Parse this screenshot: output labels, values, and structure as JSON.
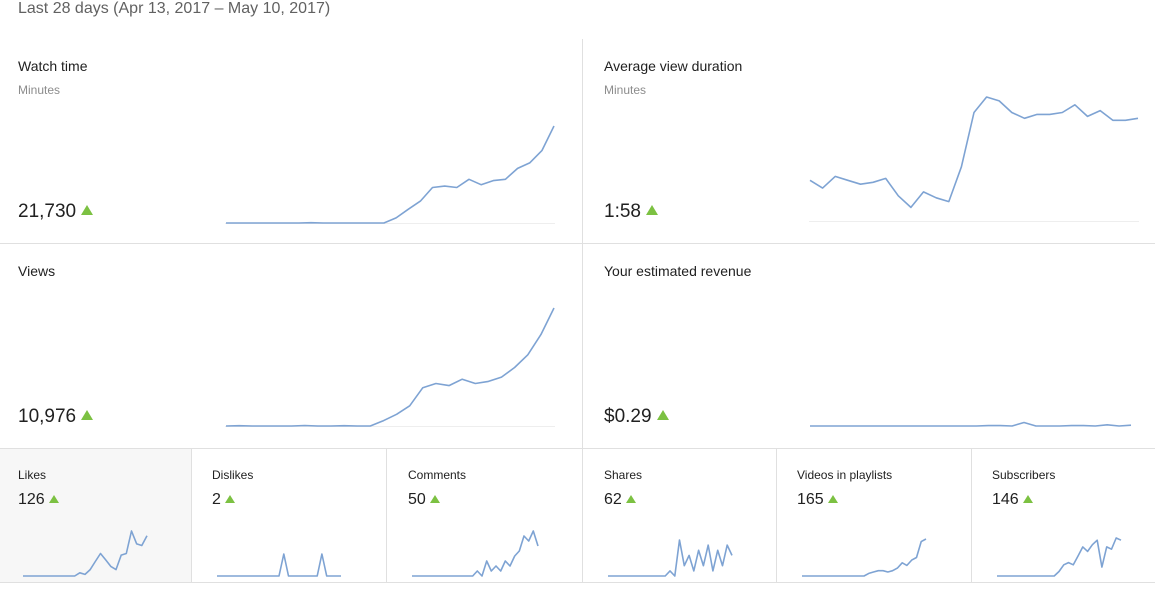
{
  "header": {
    "date_range": "Last 28 days (Apr 13, 2017 – May 10, 2017)"
  },
  "colors": {
    "line": "#7ea3d3",
    "up_arrow": "#7cc142",
    "divider": "#e0e0e0"
  },
  "metrics": {
    "watch_time": {
      "title": "Watch time",
      "subtitle": "Minutes",
      "value": "21,730",
      "trend": "up",
      "series": [
        0,
        0,
        0,
        0,
        0,
        0,
        0,
        0.2,
        0,
        0,
        0,
        0,
        0,
        0,
        3.7,
        10,
        16,
        26,
        27,
        26,
        32,
        28,
        31,
        32,
        40,
        44,
        53,
        71
      ]
    },
    "avg_view_duration": {
      "title": "Average view duration",
      "subtitle": "Minutes",
      "value": "1:58",
      "trend": "up",
      "series": [
        21,
        17,
        23,
        21,
        19,
        20,
        22,
        13,
        7,
        15,
        12,
        10,
        28,
        56,
        64,
        62,
        56,
        53,
        55,
        55,
        56,
        60,
        54,
        57,
        52,
        52,
        53
      ]
    },
    "views": {
      "title": "Views",
      "subtitle": "",
      "value": "10,976",
      "trend": "up",
      "series": [
        0,
        0.3,
        0,
        0,
        0,
        0,
        0.5,
        0,
        0,
        0.3,
        0,
        0,
        5,
        11,
        19,
        36,
        40,
        38,
        44,
        40,
        42,
        46,
        55,
        67,
        86,
        111
      ]
    },
    "revenue": {
      "title": "Your estimated revenue",
      "subtitle": "",
      "value": "$0.29",
      "trend": "up",
      "series": [
        0,
        0,
        0,
        0,
        0,
        0,
        0,
        0,
        0,
        0,
        0,
        0,
        0,
        0,
        0,
        0.1,
        0.1,
        0,
        0.9,
        0,
        0,
        0,
        0.1,
        0.1,
        0,
        0.3,
        0,
        0.2
      ]
    },
    "likes": {
      "title": "Likes",
      "value": "126",
      "trend": "up",
      "series": [
        0,
        0,
        0,
        0,
        0,
        0,
        0,
        0,
        0,
        0,
        0,
        2,
        1,
        4,
        9,
        14,
        10,
        6,
        4,
        13,
        14,
        28,
        20,
        19,
        25
      ]
    },
    "dislikes": {
      "title": "Dislikes",
      "value": "2",
      "trend": "up",
      "series": [
        0,
        0,
        0,
        0,
        0,
        0,
        0,
        0,
        0,
        0,
        0,
        0,
        0,
        0,
        1,
        0,
        0,
        0,
        0,
        0,
        0,
        0,
        1,
        0,
        0,
        0,
        0
      ]
    },
    "comments": {
      "title": "Comments",
      "value": "50",
      "trend": "up",
      "series": [
        0,
        0,
        0,
        0,
        0,
        0,
        0,
        0,
        0,
        0,
        0,
        0,
        0,
        0,
        1,
        0,
        3,
        1,
        2,
        1,
        3,
        2,
        4,
        5,
        8,
        7,
        9,
        6
      ]
    },
    "shares": {
      "title": "Shares",
      "value": "62",
      "trend": "up",
      "series": [
        0,
        0,
        0,
        0,
        0,
        0,
        0,
        0,
        0,
        0,
        0,
        0,
        0,
        1,
        0,
        7,
        2,
        4,
        1,
        5,
        2,
        6,
        1,
        5,
        2,
        6,
        4
      ]
    },
    "videos_in_playlists": {
      "title": "Videos in playlists",
      "value": "165",
      "trend": "up",
      "series": [
        0,
        0,
        0,
        0,
        0,
        0,
        0,
        0,
        0,
        0,
        0,
        0,
        0,
        0,
        1,
        1.5,
        2,
        2,
        1.5,
        2,
        3,
        5,
        4,
        6,
        7,
        13,
        14
      ]
    },
    "subscribers": {
      "title": "Subscribers",
      "value": "146",
      "trend": "up",
      "series": [
        0,
        0,
        0,
        0,
        0,
        0,
        0,
        0,
        0,
        0,
        0,
        0,
        0,
        2,
        5,
        6,
        5,
        9,
        13,
        11,
        14,
        16,
        4,
        13,
        12,
        17,
        16
      ]
    }
  }
}
